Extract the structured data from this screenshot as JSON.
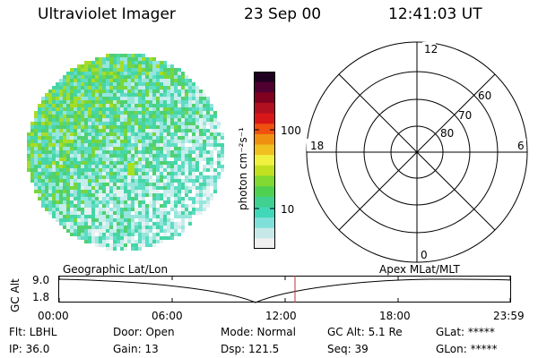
{
  "header": {
    "instrument": "Ultraviolet Imager",
    "date": "23 Sep 00",
    "time": "12:41:03 UT"
  },
  "colorbar": {
    "unit_label": "photon cm⁻²s⁻¹",
    "ticks": [
      "100",
      "10"
    ],
    "colors": [
      "#f0f0f0",
      "#c8e8e8",
      "#7ee0d8",
      "#40d8b8",
      "#40d090",
      "#50d050",
      "#80d830",
      "#c0e020",
      "#f0f040",
      "#f0c020",
      "#f09010",
      "#f05010",
      "#d81818",
      "#b01020",
      "#800020",
      "#500030",
      "#200020"
    ]
  },
  "polar_plot": {
    "mlt_labels": {
      "top": "12",
      "bottom": "0",
      "left": "18",
      "right": "6"
    },
    "lat_labels": [
      "60",
      "70",
      "80"
    ]
  },
  "timeline": {
    "left_title": "Geographic Lat/Lon",
    "right_title": "Apex MLat/MLT",
    "y_axis_label": "GC Alt",
    "y_ticks": [
      "9.0",
      "1.8"
    ],
    "x_ticks": [
      "00:00",
      "06:00",
      "12:00",
      "18:00",
      "23:59"
    ],
    "marker_color": "#c03030"
  },
  "info": {
    "flt": "Flt: LBHL",
    "ip": "IP: 36.0",
    "door": "Door: Open",
    "gain": "Gain: 13",
    "mode": "Mode: Normal",
    "dsp": "Dsp:  121.5",
    "gc_alt": "GC Alt: 5.1 Re",
    "seq": "Seq: 39",
    "glat": "GLat: *****",
    "glon": "GLon: *****"
  }
}
